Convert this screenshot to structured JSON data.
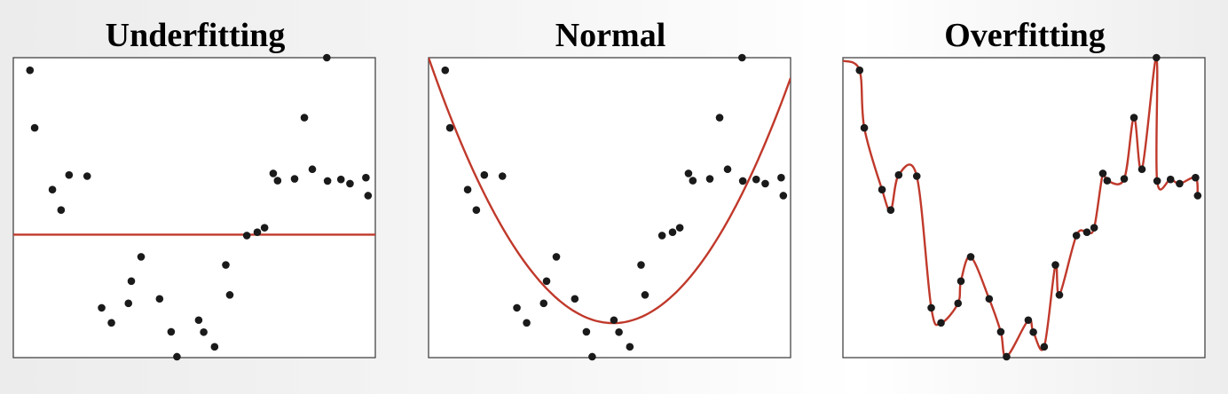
{
  "chart_data": [
    {
      "type": "scatter",
      "title": "Underfitting",
      "xlim": [
        0,
        1
      ],
      "ylim": [
        0,
        1
      ],
      "grid": false,
      "points": {
        "x": [
          0.046,
          0.059,
          0.108,
          0.132,
          0.154,
          0.204,
          0.244,
          0.271,
          0.318,
          0.326,
          0.353,
          0.404,
          0.436,
          0.452,
          0.512,
          0.526,
          0.556,
          0.587,
          0.598,
          0.645,
          0.674,
          0.694,
          0.718,
          0.73,
          0.777,
          0.804,
          0.826,
          0.866,
          0.868,
          0.905,
          0.93,
          0.974,
          0.98
        ],
        "y": [
          0.958,
          0.766,
          0.56,
          0.492,
          0.609,
          0.605,
          0.166,
          0.116,
          0.181,
          0.255,
          0.336,
          0.196,
          0.086,
          0.003,
          0.125,
          0.085,
          0.036,
          0.309,
          0.209,
          0.407,
          0.418,
          0.433,
          0.614,
          0.59,
          0.596,
          0.8,
          0.628,
          1.0,
          0.589,
          0.594,
          0.58,
          0.6,
          0.54
        ]
      },
      "fit": {
        "kind": "constant",
        "y": 0.41
      }
    },
    {
      "type": "scatter",
      "title": "Normal",
      "xlim": [
        0,
        1
      ],
      "ylim": [
        0,
        1
      ],
      "grid": false,
      "points": {
        "x": [
          0.046,
          0.059,
          0.108,
          0.132,
          0.154,
          0.204,
          0.244,
          0.271,
          0.318,
          0.326,
          0.353,
          0.404,
          0.436,
          0.452,
          0.512,
          0.526,
          0.556,
          0.587,
          0.598,
          0.645,
          0.674,
          0.694,
          0.718,
          0.73,
          0.777,
          0.804,
          0.826,
          0.866,
          0.868,
          0.905,
          0.93,
          0.974,
          0.98
        ],
        "y": [
          0.958,
          0.766,
          0.56,
          0.492,
          0.609,
          0.605,
          0.166,
          0.116,
          0.181,
          0.255,
          0.336,
          0.196,
          0.086,
          0.003,
          0.125,
          0.085,
          0.036,
          0.309,
          0.209,
          0.407,
          0.418,
          0.433,
          0.614,
          0.59,
          0.596,
          0.8,
          0.628,
          1.0,
          0.589,
          0.594,
          0.58,
          0.6,
          0.54
        ]
      },
      "fit": {
        "kind": "quadratic",
        "vertex_x": 0.51,
        "vertex_y": 0.115,
        "edge_y": 1.0
      }
    },
    {
      "type": "scatter",
      "title": "Overfitting",
      "xlim": [
        0,
        1
      ],
      "ylim": [
        0,
        1
      ],
      "grid": false,
      "points": {
        "x": [
          0.046,
          0.059,
          0.108,
          0.132,
          0.154,
          0.204,
          0.244,
          0.271,
          0.318,
          0.326,
          0.353,
          0.404,
          0.436,
          0.452,
          0.512,
          0.526,
          0.556,
          0.587,
          0.598,
          0.645,
          0.674,
          0.694,
          0.718,
          0.73,
          0.777,
          0.804,
          0.826,
          0.866,
          0.868,
          0.905,
          0.93,
          0.974,
          0.98
        ],
        "y": [
          0.958,
          0.766,
          0.56,
          0.492,
          0.609,
          0.605,
          0.166,
          0.116,
          0.181,
          0.255,
          0.336,
          0.196,
          0.086,
          0.003,
          0.125,
          0.085,
          0.036,
          0.309,
          0.209,
          0.407,
          0.418,
          0.433,
          0.614,
          0.59,
          0.596,
          0.8,
          0.628,
          1.0,
          0.589,
          0.594,
          0.58,
          0.6,
          0.54
        ]
      },
      "fit": {
        "kind": "interpolating"
      }
    }
  ],
  "colors": {
    "fit_line": "#c0392b",
    "points": "#1a1a1a",
    "frame": "#444444"
  }
}
